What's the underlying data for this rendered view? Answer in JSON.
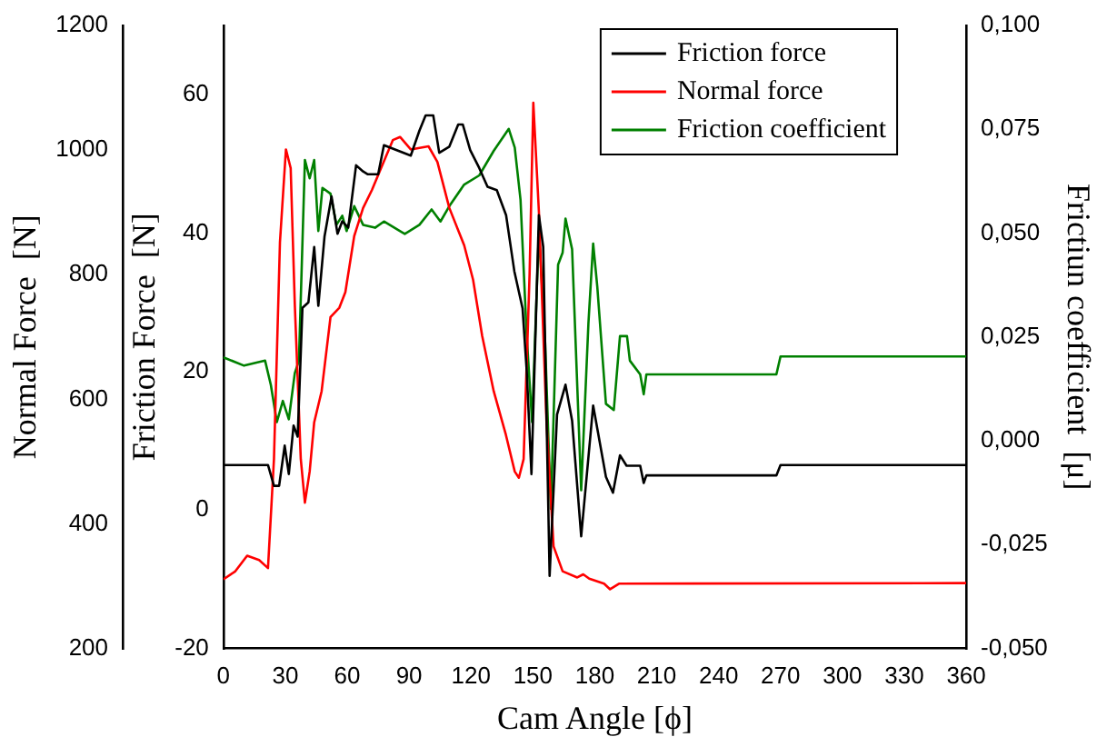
{
  "chart_data": {
    "type": "line",
    "xlabel": "Cam Angle [ϕ]",
    "ylabel": "Friction Force  [N]",
    "y2label": "Frictiun coefficient  [μ]",
    "y3label": "Normal Force  [N]",
    "xlim": [
      0,
      360
    ],
    "xticks": [
      0,
      30,
      60,
      90,
      120,
      150,
      180,
      210,
      240,
      270,
      300,
      330,
      360
    ],
    "ylim": [
      -20,
      70
    ],
    "yticks": [
      -20,
      0,
      20,
      40,
      60
    ],
    "y3lim": [
      200,
      1200
    ],
    "y3ticks": [
      200,
      400,
      600,
      800,
      1000,
      1200
    ],
    "y2lim": [
      -0.05,
      0.1
    ],
    "y2ticks": [
      {
        "value": -0.05,
        "label": "-0,050"
      },
      {
        "value": -0.025,
        "label": "-0,025"
      },
      {
        "value": 0,
        "label": "0,000"
      },
      {
        "value": 0.025,
        "label": "0,025"
      },
      {
        "value": 0.05,
        "label": "0,050"
      },
      {
        "value": 0.075,
        "label": "0,075"
      },
      {
        "value": 0.1,
        "label": "0,100"
      }
    ],
    "grid": false,
    "legend": "top right",
    "marker": "none",
    "line_style": "solid",
    "series": [
      {
        "name": "Friction force",
        "color": "#000000",
        "x": [
          0,
          21.6,
          24.5,
          27,
          29.7,
          31.7,
          34,
          36,
          38.3,
          41.2,
          44,
          46,
          49,
          52.4,
          55.3,
          57.6,
          60.5,
          64.3,
          67.7,
          70,
          75,
          77.8,
          90.8,
          95,
          98,
          101.7,
          104.6,
          109.5,
          113.8,
          116,
          119.6,
          124,
          128,
          132.5,
          137,
          141,
          145,
          147,
          149.3,
          152.9,
          155,
          158.1,
          161.7,
          165.8,
          169,
          173.4,
          179.2,
          185.4,
          188.8,
          192.2,
          195.4,
          202,
          203.7,
          205,
          268,
          270,
          360
        ],
        "values": [
          6.5,
          6.5,
          3.5,
          3.5,
          9.3,
          5.2,
          12.2,
          10.6,
          29.2,
          30,
          38,
          29.5,
          39.5,
          45.3,
          39.9,
          41.7,
          40.8,
          49.8,
          48.9,
          48.5,
          48.5,
          52.7,
          51.2,
          54.8,
          57,
          57,
          51.6,
          52.5,
          55.7,
          55.7,
          52,
          49.4,
          46.7,
          46.2,
          42.6,
          34.5,
          29.1,
          20.1,
          5.2,
          42.6,
          38,
          -9.5,
          13.8,
          18.1,
          12.9,
          -3.8,
          15.1,
          4.8,
          2.5,
          7.9,
          6.4,
          6.4,
          3.9,
          5,
          5,
          6.5,
          6.5
        ]
      },
      {
        "name": "Normal force",
        "color": "#ff0000",
        "axis": "y3",
        "x": [
          0,
          5.8,
          11.5,
          17.3,
          21.6,
          24.5,
          27.4,
          30.3,
          32.6,
          34.6,
          37.5,
          39.5,
          41.8,
          44,
          47.6,
          51.9,
          56.2,
          59.1,
          63.4,
          67.7,
          72,
          76.4,
          82.1,
          85.6,
          90.8,
          99.4,
          103.7,
          109.5,
          116.7,
          121,
          125.4,
          131,
          136.9,
          141.2,
          143.2,
          145.5,
          148.4,
          150.2,
          152.9,
          156.6,
          160,
          164.4,
          171.5,
          174.4,
          177.3,
          184.5,
          187.4,
          191.7,
          360
        ],
        "values": [
          311,
          324,
          349,
          342,
          329,
          504,
          852,
          1001,
          971,
          752,
          504,
          434,
          484,
          563,
          613,
          732,
          747,
          772,
          862,
          907,
          936,
          971,
          1016,
          1021,
          1001,
          1006,
          981,
          907,
          847,
          792,
          702,
          613,
          543,
          484,
          474,
          504,
          802,
          1076,
          901,
          563,
          364,
          324,
          314,
          319,
          312,
          304,
          295,
          304,
          305
        ]
      },
      {
        "name": "Friction coefficient",
        "color": "#008000",
        "axis": "y2",
        "x": [
          0,
          10,
          20.2,
          23,
          25.9,
          28.8,
          31.7,
          34.6,
          36.6,
          39.5,
          41.8,
          44,
          46,
          48,
          51.9,
          54.8,
          57.6,
          59.7,
          63.4,
          67.7,
          73.5,
          77.8,
          87.9,
          95,
          100.9,
          105.2,
          109.5,
          116.7,
          124,
          131,
          138.3,
          141.2,
          144,
          147,
          149.6,
          152.9,
          155.8,
          158.7,
          162.2,
          164.4,
          165.8,
          169,
          173.4,
          176.9,
          179.2,
          181.2,
          185.4,
          189.2,
          192.2,
          195.6,
          197,
          202,
          203.7,
          205,
          268,
          270,
          360
        ],
        "values": [
          0.0201,
          0.0181,
          0.0193,
          0.0134,
          0.0045,
          0.0096,
          0.0052,
          0.0163,
          0.0193,
          0.0676,
          0.0632,
          0.0676,
          0.0505,
          0.0609,
          0.0595,
          0.052,
          0.0542,
          0.0505,
          0.0565,
          0.052,
          0.0513,
          0.0528,
          0.0498,
          0.052,
          0.0557,
          0.0528,
          0.0565,
          0.0617,
          0.0639,
          0.0698,
          0.0751,
          0.0706,
          0.058,
          0.0252,
          0.0045,
          0.0505,
          0.0252,
          -0.0164,
          0.0424,
          0.0453,
          0.0535,
          0.0461,
          -0.0119,
          0.0282,
          0.0475,
          0.0371,
          0.0089,
          0.0074,
          0.0252,
          0.0252,
          0.0193,
          0.016,
          0.0112,
          0.016,
          0.016,
          0.0203,
          0.0203
        ]
      }
    ]
  }
}
